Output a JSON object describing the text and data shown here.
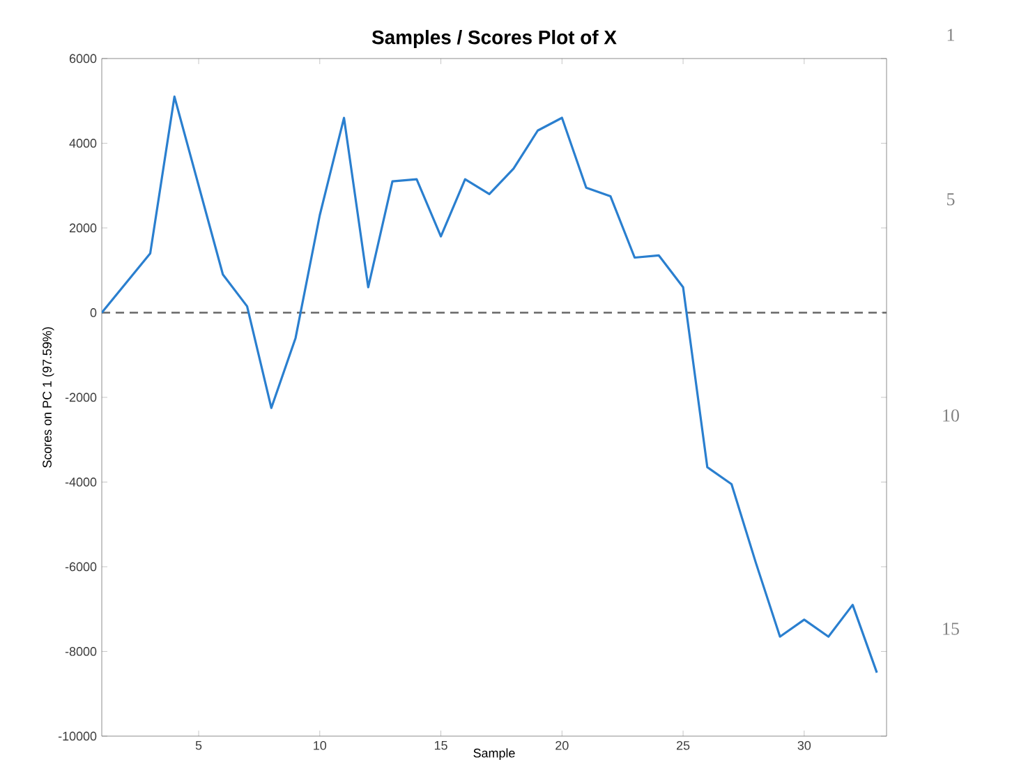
{
  "chart_data": {
    "type": "line",
    "title": "Samples / Scores Plot of X",
    "xlabel": "Sample",
    "ylabel": "Scores on PC 1 (97.59%)",
    "x": [
      1,
      2,
      3,
      4,
      5,
      6,
      7,
      8,
      9,
      10,
      11,
      12,
      13,
      14,
      15,
      16,
      17,
      18,
      19,
      20,
      21,
      22,
      23,
      24,
      25,
      26,
      27,
      28,
      29,
      30,
      31,
      32,
      33
    ],
    "series": [
      {
        "color": "#2a7fcf",
        "values": [
          0,
          700,
          1400,
          5100,
          3000,
          900,
          150,
          -2250,
          -600,
          2300,
          4600,
          600,
          3100,
          3150,
          1800,
          3150,
          2800,
          3400,
          4300,
          4600,
          2950,
          2750,
          1300,
          1350,
          600,
          -3650,
          -4050,
          -5900,
          -7650,
          -7250,
          -7650,
          -6900,
          -8500
        ]
      }
    ],
    "xlim": [
      1,
      33.4
    ],
    "ylim": [
      -10000,
      6000
    ],
    "xticks": [
      5,
      10,
      15,
      20,
      25,
      30
    ],
    "yticks": [
      -10000,
      -8000,
      -6000,
      -4000,
      -2000,
      0,
      2000,
      4000,
      6000
    ],
    "ref_lines": [
      {
        "axis": "y",
        "value": 0,
        "color": "#666666",
        "line_style": "dashed"
      }
    ],
    "annotations": [
      "1",
      "5",
      "10",
      "15"
    ],
    "grid": false,
    "marker": "none",
    "line_style": "solid"
  }
}
